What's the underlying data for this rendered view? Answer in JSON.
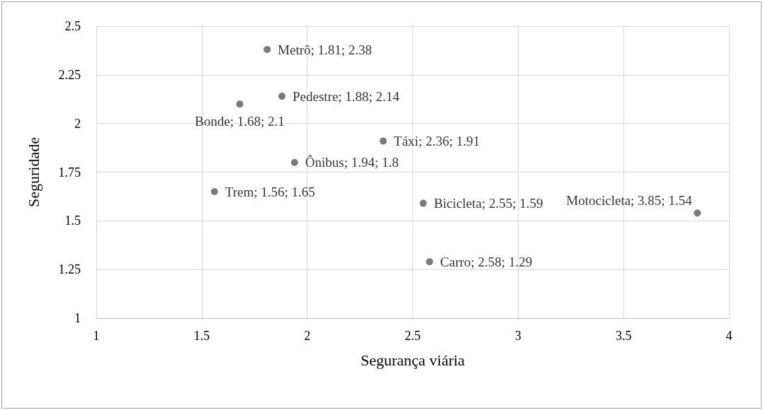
{
  "chart_data": {
    "type": "scatter",
    "xlabel": "Segurança viária",
    "ylabel": "Seguridade",
    "x": [
      1.81,
      1.88,
      1.68,
      2.36,
      1.94,
      1.56,
      2.55,
      3.85,
      2.58
    ],
    "values": [
      2.38,
      2.14,
      2.1,
      1.91,
      1.8,
      1.65,
      1.59,
      1.54,
      1.29
    ],
    "value_labels": [
      "Metrô; 1.81; 2.38",
      "Pedestre; 1.88; 2.14",
      "Bonde; 1.68; 2.1",
      "Táxi; 2.36; 1.91",
      "Ônibus; 1.94; 1.8",
      "Trem; 1.56; 1.65",
      "Bicicleta; 2.55; 1.59",
      "Motocicleta; 3.85; 1.54",
      "Carro; 2.58; 1.29"
    ],
    "color": "#595959",
    "marker": "circle",
    "grid": true,
    "xlim": [
      1,
      4
    ],
    "xticks": [
      1,
      1.5,
      2,
      2.5,
      3,
      3.5,
      4
    ],
    "ylim": [
      1,
      2.5
    ],
    "yticks": [
      1,
      1.25,
      1.5,
      1.75,
      2,
      2.25,
      2.5
    ]
  }
}
